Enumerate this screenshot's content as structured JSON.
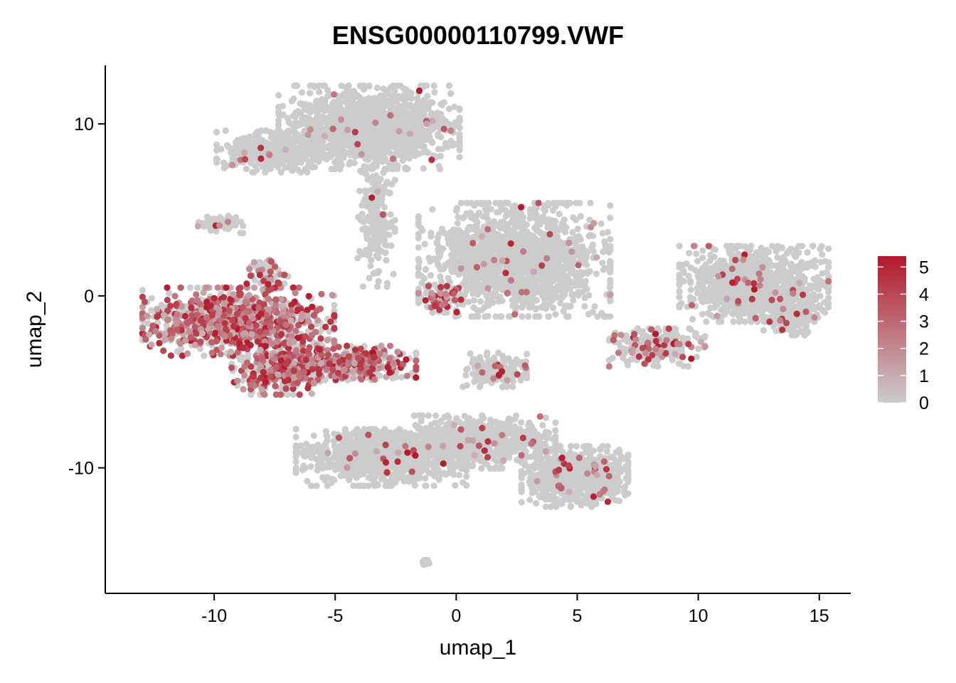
{
  "chart_data": {
    "type": "scatter",
    "title": "ENSG00000110799.VWF",
    "xlabel": "umap_1",
    "ylabel": "umap_2",
    "xlim": [
      -14.5,
      16.3
    ],
    "ylim": [
      -17.3,
      13.4
    ],
    "x_ticks": [
      -10,
      -5,
      0,
      5,
      10,
      15
    ],
    "x_tick_labels": [
      "-10",
      "-5",
      "0",
      "5",
      "10",
      "15"
    ],
    "y_ticks": [
      -10,
      0,
      10
    ],
    "y_tick_labels": [
      "-10",
      "0",
      "10"
    ],
    "grid": false,
    "point_color_low": "#cccccc",
    "point_color_high": "#b2182b",
    "color_scale": {
      "min": 0,
      "max": 5.4,
      "ticks": [
        0,
        1,
        2,
        3,
        4,
        5
      ],
      "tick_labels": [
        "0",
        "1",
        "2",
        "3",
        "4",
        "5"
      ],
      "legend_position": "right"
    },
    "clusters": [
      {
        "id": "top-main",
        "cx": -3.6,
        "cy": 9.8,
        "sx": 1.7,
        "sy": 1.1,
        "n": 1400,
        "expr_rate": 0.015
      },
      {
        "id": "top-arm",
        "cx": -7.7,
        "cy": 8.4,
        "sx": 1.0,
        "sy": 0.55,
        "n": 350,
        "expr_rate": 0.03
      },
      {
        "id": "top-stalk",
        "cx": -3.3,
        "cy": 4.5,
        "sx": 0.35,
        "sy": 1.8,
        "n": 220,
        "expr_rate": 0.02
      },
      {
        "id": "small-left",
        "cx": -9.8,
        "cy": 4.2,
        "sx": 0.45,
        "sy": 0.25,
        "n": 70,
        "expr_rate": 0.08
      },
      {
        "id": "left-main",
        "cx": -9.0,
        "cy": -1.5,
        "sx": 1.8,
        "sy": 0.9,
        "n": 1000,
        "expr_rate": 0.55
      },
      {
        "id": "left-lower",
        "cx": -7.3,
        "cy": -4.2,
        "sx": 0.9,
        "sy": 0.7,
        "n": 350,
        "expr_rate": 0.55
      },
      {
        "id": "left-arm",
        "cx": -4.3,
        "cy": -3.9,
        "sx": 1.2,
        "sy": 0.45,
        "n": 380,
        "expr_rate": 0.5
      },
      {
        "id": "left-top",
        "cx": -7.8,
        "cy": 1.2,
        "sx": 0.4,
        "sy": 0.4,
        "n": 60,
        "expr_rate": 0.4
      },
      {
        "id": "center-main",
        "cx": 2.4,
        "cy": 2.1,
        "sx": 1.8,
        "sy": 1.5,
        "n": 1500,
        "expr_rate": 0.02
      },
      {
        "id": "center-left",
        "cx": -0.5,
        "cy": -0.2,
        "sx": 0.35,
        "sy": 0.35,
        "n": 70,
        "expr_rate": 0.5
      },
      {
        "id": "center-small",
        "cx": 1.6,
        "cy": -4.3,
        "sx": 0.6,
        "sy": 0.45,
        "n": 160,
        "expr_rate": 0.08
      },
      {
        "id": "bottom-left",
        "cx": -3.1,
        "cy": -9.4,
        "sx": 1.6,
        "sy": 0.75,
        "n": 1000,
        "expr_rate": 0.02
      },
      {
        "id": "bottom-mid",
        "cx": 0.8,
        "cy": -8.5,
        "sx": 1.5,
        "sy": 0.7,
        "n": 700,
        "expr_rate": 0.03
      },
      {
        "id": "bottom-right",
        "cx": 4.9,
        "cy": -10.5,
        "sx": 1.0,
        "sy": 0.8,
        "n": 800,
        "expr_rate": 0.04
      },
      {
        "id": "right-main",
        "cx": 12.3,
        "cy": 0.7,
        "sx": 1.4,
        "sy": 1.0,
        "n": 1000,
        "expr_rate": 0.03
      },
      {
        "id": "right-tail",
        "cx": 13.8,
        "cy": -1.3,
        "sx": 0.5,
        "sy": 0.45,
        "n": 220,
        "expr_rate": 0.02
      },
      {
        "id": "right-small",
        "cx": 8.3,
        "cy": -3.0,
        "sx": 0.9,
        "sy": 0.5,
        "n": 240,
        "expr_rate": 0.15
      },
      {
        "id": "bottom-tiny",
        "cx": -1.3,
        "cy": -15.5,
        "sx": 0.08,
        "sy": 0.08,
        "n": 15,
        "expr_rate": 0.0
      }
    ]
  }
}
